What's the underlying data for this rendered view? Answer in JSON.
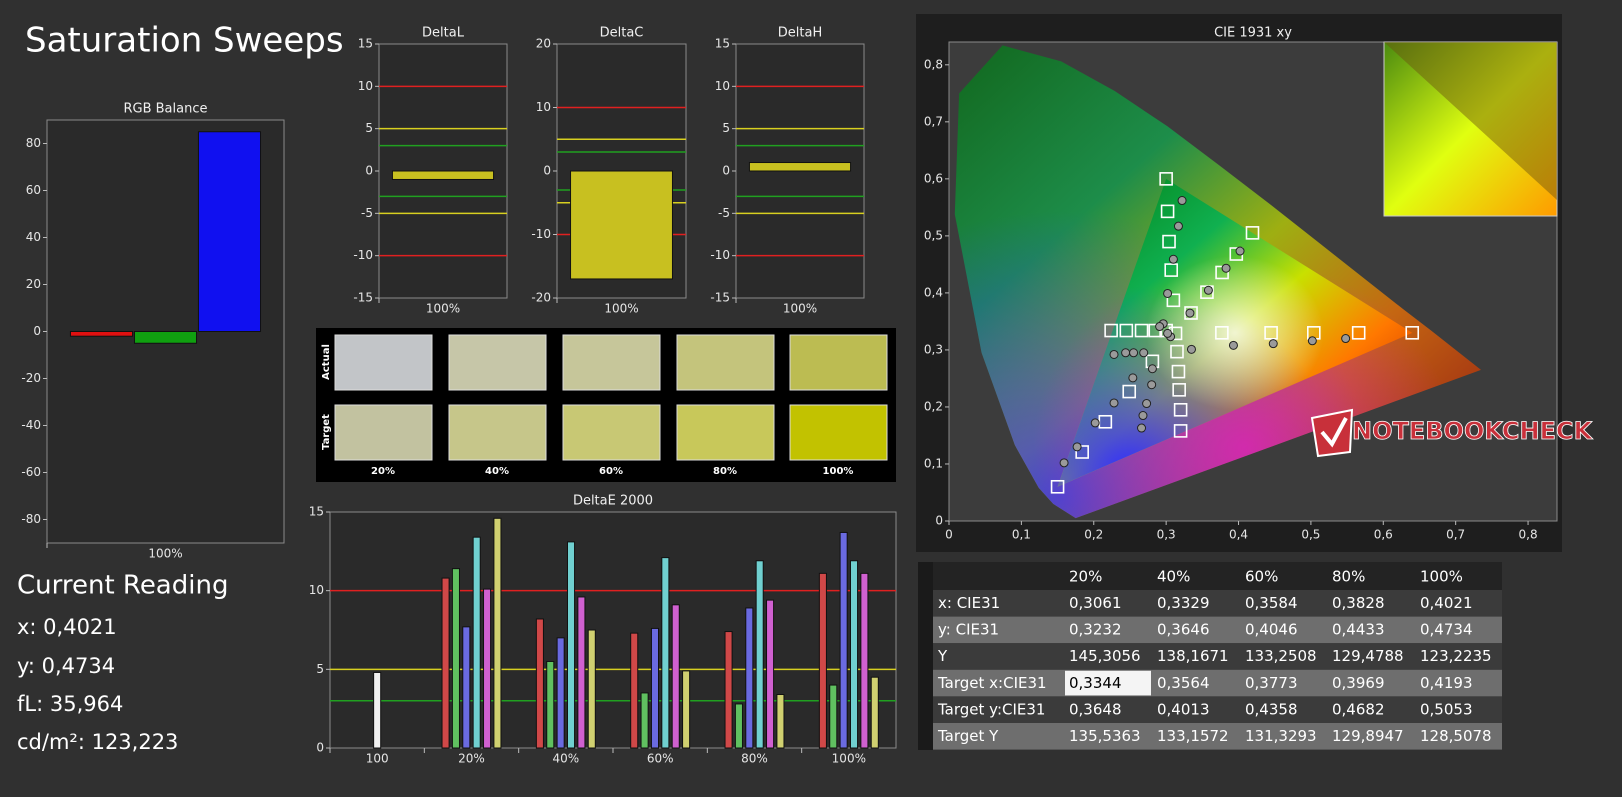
{
  "title": "Saturation Sweeps",
  "chart_data": [
    {
      "type": "bar",
      "title": "RGB Balance",
      "categories": [
        "100%"
      ],
      "series": [
        {
          "color": "#e01010",
          "values": [
            -2
          ]
        },
        {
          "color": "#10a010",
          "values": [
            -5
          ]
        },
        {
          "color": "#1010f0",
          "values": [
            85
          ]
        }
      ],
      "ylim": [
        -90,
        90
      ],
      "yticks": [
        -80,
        -60,
        -40,
        -20,
        0,
        20,
        40,
        60,
        80
      ]
    },
    {
      "type": "bar",
      "title": "DeltaL",
      "categories": [
        "100%"
      ],
      "values": [
        -1
      ],
      "color": "#c8c020",
      "ylim": [
        -15,
        15
      ],
      "yticks": [
        -15,
        -10,
        -5,
        0,
        5,
        10,
        15
      ],
      "reference_lines": [
        {
          "value": 10,
          "color": "#e02020"
        },
        {
          "value": -10,
          "color": "#e02020"
        },
        {
          "value": 5,
          "color": "#d8d020"
        },
        {
          "value": -5,
          "color": "#d8d020"
        },
        {
          "value": 3,
          "color": "#20a020"
        },
        {
          "value": -3,
          "color": "#20a020"
        }
      ]
    },
    {
      "type": "bar",
      "title": "DeltaC",
      "categories": [
        "100%"
      ],
      "values": [
        -17
      ],
      "color": "#c8c020",
      "ylim": [
        -20,
        20
      ],
      "yticks": [
        -20,
        -10,
        0,
        10,
        20
      ],
      "reference_lines": [
        {
          "value": 10,
          "color": "#e02020"
        },
        {
          "value": -10,
          "color": "#e02020"
        },
        {
          "value": 5,
          "color": "#d8d020"
        },
        {
          "value": -5,
          "color": "#d8d020"
        },
        {
          "value": 3,
          "color": "#20a020"
        },
        {
          "value": -3,
          "color": "#20a020"
        }
      ]
    },
    {
      "type": "bar",
      "title": "DeltaH",
      "categories": [
        "100%"
      ],
      "values": [
        1
      ],
      "color": "#c8c020",
      "ylim": [
        -15,
        15
      ],
      "yticks": [
        -15,
        -10,
        -5,
        0,
        5,
        10,
        15
      ],
      "reference_lines": [
        {
          "value": 10,
          "color": "#e02020"
        },
        {
          "value": -10,
          "color": "#e02020"
        },
        {
          "value": 5,
          "color": "#d8d020"
        },
        {
          "value": -5,
          "color": "#d8d020"
        },
        {
          "value": 3,
          "color": "#20a020"
        },
        {
          "value": -3,
          "color": "#20a020"
        }
      ]
    },
    {
      "type": "bar",
      "title": "DeltaE 2000",
      "categories": [
        "100",
        "20%",
        "40%",
        "60%",
        "80%",
        "100%"
      ],
      "series": [
        {
          "color": "#f0f0f0",
          "values": [
            4.8,
            null,
            null,
            null,
            null,
            null
          ]
        },
        {
          "color": "#d04848",
          "values": [
            null,
            10.8,
            8.2,
            7.3,
            7.4,
            11.1
          ]
        },
        {
          "color": "#60c060",
          "values": [
            null,
            11.4,
            5.5,
            3.5,
            2.8,
            4.0
          ]
        },
        {
          "color": "#6a6ae0",
          "values": [
            null,
            7.7,
            7.0,
            7.6,
            8.9,
            13.7
          ]
        },
        {
          "color": "#70d0d0",
          "values": [
            null,
            13.4,
            13.1,
            12.1,
            11.9,
            11.9
          ]
        },
        {
          "color": "#d060d0",
          "values": [
            null,
            10.1,
            9.6,
            9.1,
            9.4,
            11.1
          ]
        },
        {
          "color": "#d0d070",
          "values": [
            null,
            14.6,
            7.5,
            4.9,
            3.4,
            4.5
          ]
        }
      ],
      "ylim": [
        0,
        15
      ],
      "yticks": [
        0,
        5,
        10,
        15
      ],
      "reference_lines": [
        {
          "value": 10,
          "color": "#e02020"
        },
        {
          "value": 5,
          "color": "#d8d020"
        },
        {
          "value": 3,
          "color": "#20a020"
        }
      ]
    },
    {
      "type": "scatter",
      "title": "CIE 1931 xy",
      "xlim": [
        0,
        0.84
      ],
      "ylim": [
        0,
        0.84
      ],
      "xticks": [
        0,
        {
          "value": 0.1,
          "label": "0,1"
        },
        {
          "value": 0.2,
          "label": "0,2"
        },
        {
          "value": 0.3,
          "label": "0,3"
        },
        {
          "value": 0.4,
          "label": "0,4"
        },
        {
          "value": 0.5,
          "label": "0,5"
        },
        {
          "value": 0.6,
          "label": "0,6"
        },
        {
          "value": 0.7,
          "label": "0,7"
        },
        {
          "value": 0.8,
          "label": "0,8"
        }
      ],
      "yticks": [
        0,
        {
          "value": 0.1,
          "label": "0,1"
        },
        {
          "value": 0.2,
          "label": "0,2"
        },
        {
          "value": 0.3,
          "label": "0,3"
        },
        {
          "value": 0.4,
          "label": "0,4"
        },
        {
          "value": 0.5,
          "label": "0,5"
        },
        {
          "value": 0.6,
          "label": "0,6"
        },
        {
          "value": 0.7,
          "label": "0,7"
        },
        {
          "value": 0.8,
          "label": "0,8"
        }
      ],
      "series": [
        {
          "marker": "square",
          "color": "#ffffff",
          "x": [
            0.64,
            0.566,
            0.504,
            0.445,
            0.377,
            0.3,
            0.302,
            0.304,
            0.307,
            0.31,
            0.15,
            0.184,
            0.216,
            0.249,
            0.281,
            0.224,
            0.245,
            0.266,
            0.285,
            0.3,
            0.32,
            0.32,
            0.318,
            0.317,
            0.315,
            0.4193,
            0.3969,
            0.3773,
            0.3564,
            0.3344,
            0.313
          ],
          "values": [
            0.33,
            0.33,
            0.33,
            0.33,
            0.33,
            0.6,
            0.543,
            0.49,
            0.44,
            0.387,
            0.06,
            0.121,
            0.174,
            0.227,
            0.28,
            0.334,
            0.334,
            0.334,
            0.334,
            0.334,
            0.158,
            0.195,
            0.23,
            0.262,
            0.297,
            0.5053,
            0.4682,
            0.4358,
            0.4013,
            0.3648,
            0.329
          ]
        },
        {
          "marker": "circle",
          "color": "#9a9a9a",
          "x": [
            0.548,
            0.502,
            0.448,
            0.393,
            0.335,
            0.322,
            0.317,
            0.31,
            0.302,
            0.296,
            0.159,
            0.177,
            0.202,
            0.228,
            0.254,
            0.228,
            0.244,
            0.255,
            0.269,
            0.291,
            0.266,
            0.268,
            0.273,
            0.28,
            0.281,
            0.4021,
            0.3828,
            0.3584,
            0.3329,
            0.3061,
            0.302
          ],
          "values": [
            0.32,
            0.316,
            0.311,
            0.308,
            0.301,
            0.562,
            0.517,
            0.459,
            0.399,
            0.346,
            0.102,
            0.13,
            0.172,
            0.207,
            0.251,
            0.292,
            0.295,
            0.295,
            0.295,
            0.341,
            0.163,
            0.185,
            0.206,
            0.239,
            0.267,
            0.4734,
            0.4433,
            0.4046,
            0.3646,
            0.3232,
            0.329
          ]
        }
      ],
      "watermark": "NOTEBOOKCHECK"
    }
  ],
  "swatches": {
    "row_labels": [
      "Actual",
      "Target"
    ],
    "columns": [
      "20%",
      "40%",
      "60%",
      "80%",
      "100%"
    ],
    "actual_colors": [
      "#c2c5c8",
      "#c6c6a8",
      "#c6c69a",
      "#c4c47c",
      "#bcbc52"
    ],
    "target_colors": [
      "#c2c2a0",
      "#c6c68a",
      "#c8c874",
      "#c8c85a",
      "#c2c200"
    ]
  },
  "current_reading": [
    "Current Reading",
    "x: 0,4021",
    "y: 0,4734",
    "fL: 35,964",
    "cd/m²: 123,223"
  ],
  "table": {
    "header": [
      "20%",
      "40%",
      "60%",
      "80%",
      "100%"
    ],
    "rows": [
      [
        "x: CIE31",
        "0,3061",
        "0,3329",
        "0,3584",
        "0,3828",
        "0,4021"
      ],
      [
        "y: CIE31",
        "0,3232",
        "0,3646",
        "0,4046",
        "0,4433",
        "0,4734"
      ],
      [
        "Y",
        "145,3056",
        "138,1671",
        "133,2508",
        "129,4788",
        "123,2235"
      ],
      [
        "Target x:CIE31",
        "0,3344",
        "0,3564",
        "0,3773",
        "0,3969",
        "0,4193"
      ],
      [
        "Target y:CIE31",
        "0,3648",
        "0,4013",
        "0,4358",
        "0,4682",
        "0,5053"
      ],
      [
        "Target Y",
        "135,5363",
        "133,1572",
        "131,3293",
        "129,8947",
        "128,5078"
      ]
    ]
  }
}
